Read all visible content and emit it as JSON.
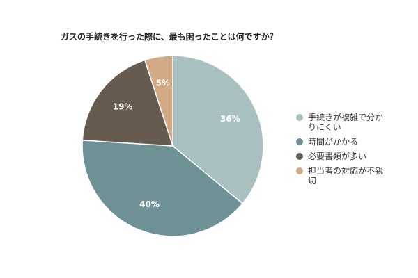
{
  "chart_data": {
    "type": "pie",
    "title": "ガスの手続きを行った際に、最も困ったことは何ですか？",
    "categories": [
      "手続きが複雑で分かりにくい",
      "時間がかかる",
      "必要書類が多い",
      "担当者の対応が不親切"
    ],
    "values": [
      36,
      40,
      19,
      5
    ],
    "value_labels": [
      "36%",
      "40%",
      "19%",
      "5%"
    ],
    "colors": [
      "#a8c0c0",
      "#6e9196",
      "#675a4f",
      "#d2aa85"
    ],
    "start_angle_deg": 0,
    "direction": "clockwise",
    "legend_position": "right"
  }
}
